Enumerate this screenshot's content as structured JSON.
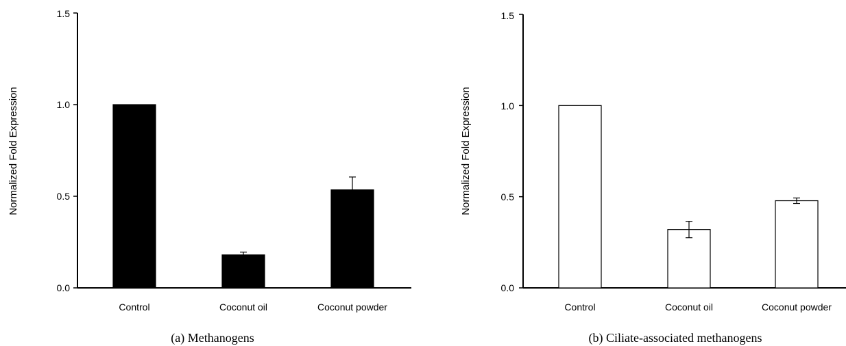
{
  "chart_data": [
    {
      "type": "bar",
      "caption": "(a) Methanogens",
      "ylabel": "Normalized Fold Expression",
      "categories": [
        "Control",
        "Coconut oil",
        "Coconut powder"
      ],
      "values": [
        1.0,
        0.18,
        0.535
      ],
      "errors": [
        0.0,
        0.015,
        0.07
      ],
      "ylim": [
        0,
        1.5
      ],
      "yticks": [
        "0.0",
        "0.5",
        "1.0",
        "1.5"
      ],
      "bar_fill": "#000000",
      "grid": false
    },
    {
      "type": "bar",
      "caption": "(b) Ciliate-associated methanogens",
      "ylabel": "Normalized Fold Expression",
      "categories": [
        "Control",
        "Coconut oil",
        "Coconut powder"
      ],
      "values": [
        1.0,
        0.32,
        0.478
      ],
      "errors": [
        0.0,
        0.045,
        0.015
      ],
      "ylim": [
        0,
        1.5
      ],
      "yticks": [
        "0.0",
        "0.5",
        "1.0",
        "1.5"
      ],
      "bar_fill": "#ffffff",
      "grid": false
    }
  ]
}
